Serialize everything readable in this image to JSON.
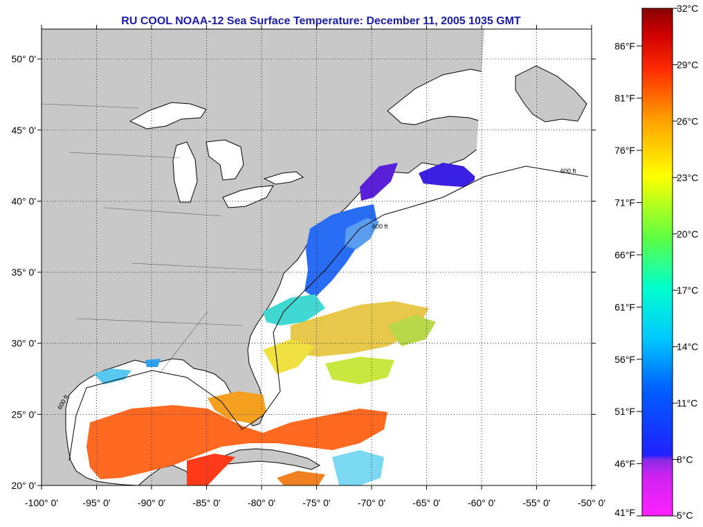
{
  "title": "RU COOL  NOAA-12  Sea Surface Temperature:  December 11, 2005 1035 GMT",
  "map": {
    "lon_ticks": [
      "-100° 0'",
      "-95° 0'",
      "-90° 0'",
      "-85° 0'",
      "-80° 0'",
      "-75° 0'",
      "-70° 0'",
      "-65° 0'",
      "-60° 0'",
      "-55° 0'",
      "-50° 0'"
    ],
    "lat_ticks": [
      "50° 0'",
      "45° 0'",
      "40° 0'",
      "35° 0'",
      "30° 0'",
      "25° 0'",
      "20° 0'"
    ],
    "isobath_label": "600 ft",
    "colors": {
      "land": "#c8c8c8",
      "ocean_nodata": "#ffffff",
      "grid": "#000000"
    }
  },
  "colorbar": {
    "celsius": [
      "32°C",
      "29°C",
      "26°C",
      "23°C",
      "20°C",
      "17°C",
      "14°C",
      "11°C",
      "8°C",
      "5°C"
    ],
    "fahrenheit": [
      "86°F",
      "81°F",
      "76°F",
      "71°F",
      "66°F",
      "61°F",
      "56°F",
      "51°F",
      "46°F",
      "41°F"
    ],
    "gradient": [
      "#ff22ff",
      "#8a2be2",
      "#2020ff",
      "#00aaff",
      "#00ffcc",
      "#44ff44",
      "#ffff00",
      "#ffaa00",
      "#ff3300",
      "#cc0000",
      "#880000"
    ]
  }
}
